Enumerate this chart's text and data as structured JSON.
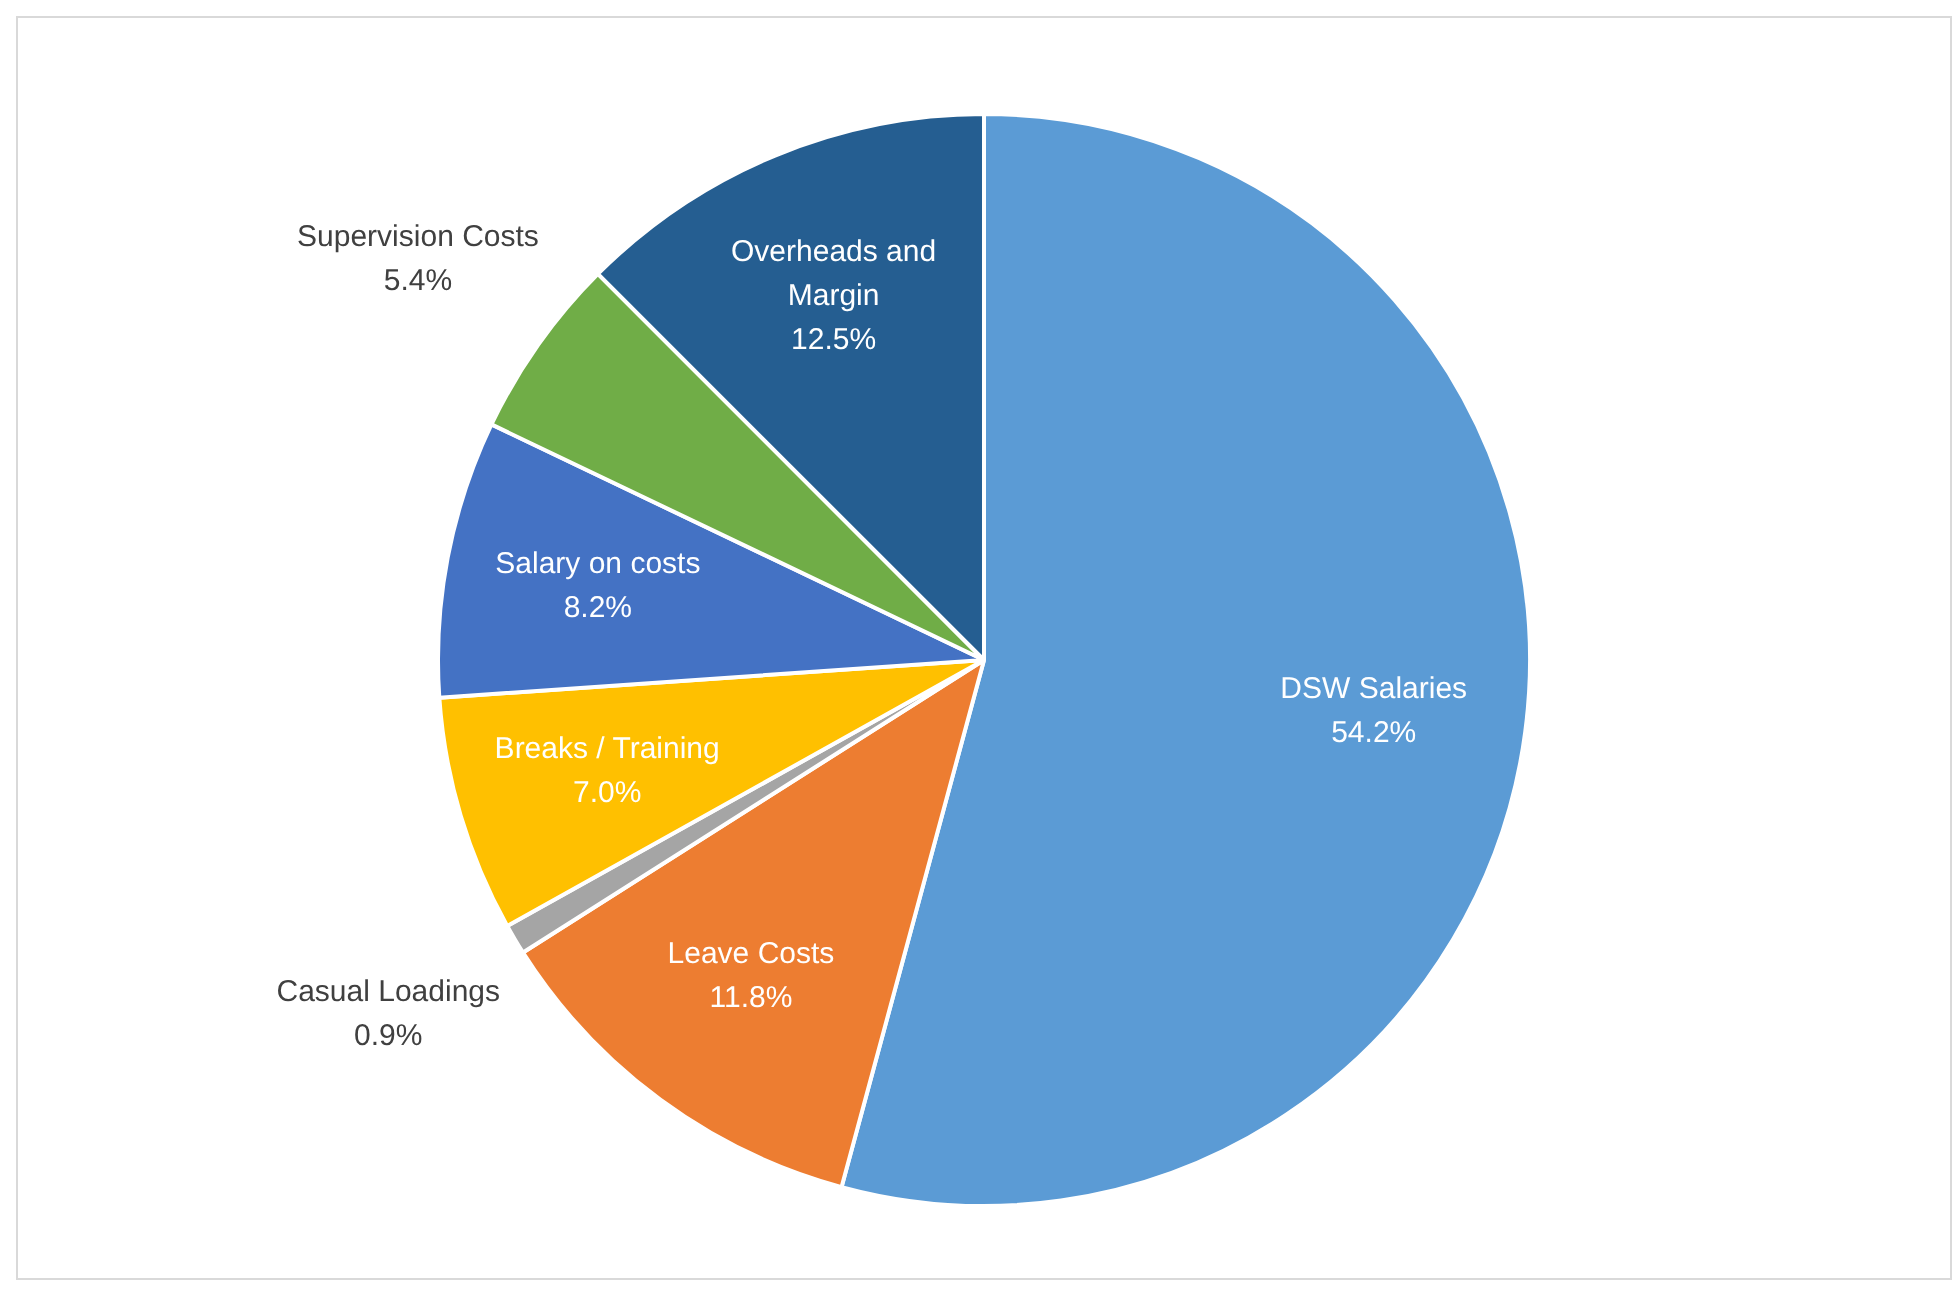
{
  "chart_data": {
    "type": "pie",
    "categories": [
      "DSW Salaries",
      "Leave Costs",
      "Casual Loadings",
      "Breaks / Training",
      "Salary on costs",
      "Supervision Costs",
      "Overheads and Margin"
    ],
    "values": [
      54.2,
      11.8,
      0.9,
      7.0,
      8.2,
      5.4,
      12.5
    ],
    "value_labels": [
      "54.2%",
      "11.8%",
      "0.9%",
      "7.0%",
      "8.2%",
      "5.4%",
      "12.5%"
    ],
    "colors": [
      "#5b9bd5",
      "#ed7d31",
      "#a5a5a5",
      "#ffc000",
      "#4472c4",
      "#70ad47",
      "#255e91"
    ],
    "legend": false
  }
}
